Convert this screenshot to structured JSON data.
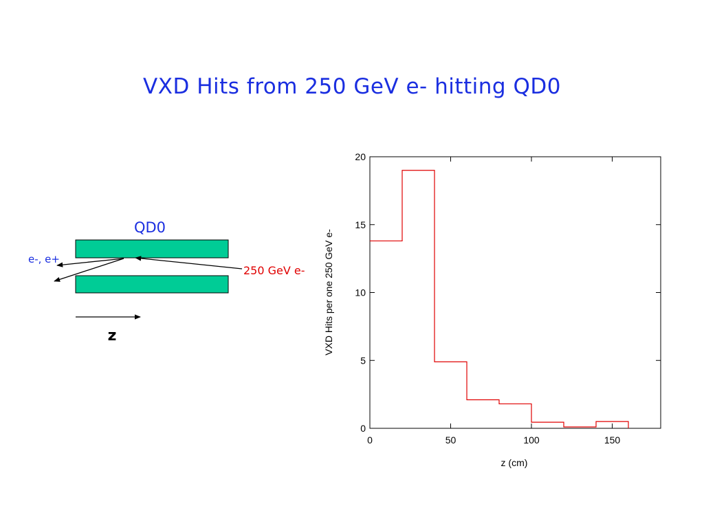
{
  "slide": {
    "title": "VXD Hits from 250 GeV e- hitting QD0"
  },
  "diagram": {
    "magnet_label": "QD0",
    "outgoing_label": "e-, e+",
    "incoming_label": "250 GeV e-",
    "axis_label": "z",
    "colors": {
      "magnet_fill": "#00cc96",
      "magnet_label": "#1a2ee0",
      "outgoing_label": "#1a2ee0",
      "incoming_label": "#e00000"
    }
  },
  "chart_data": {
    "type": "histogram",
    "xlabel": "z (cm)",
    "ylabel": "VXD Hits per one 250 GeV e-",
    "xlim": [
      0,
      180
    ],
    "ylim": [
      0,
      20
    ],
    "xticks": [
      0,
      50,
      100,
      150
    ],
    "yticks": [
      0,
      5,
      10,
      15,
      20
    ],
    "line_color": "#e00000",
    "bins": [
      {
        "x0": 0,
        "x1": 20,
        "value": 13.8
      },
      {
        "x0": 20,
        "x1": 40,
        "value": 19.0
      },
      {
        "x0": 40,
        "x1": 60,
        "value": 4.9
      },
      {
        "x0": 60,
        "x1": 80,
        "value": 2.1
      },
      {
        "x0": 80,
        "x1": 100,
        "value": 1.8
      },
      {
        "x0": 100,
        "x1": 120,
        "value": 0.45
      },
      {
        "x0": 120,
        "x1": 140,
        "value": 0.1
      },
      {
        "x0": 140,
        "x1": 160,
        "value": 0.5
      }
    ]
  }
}
